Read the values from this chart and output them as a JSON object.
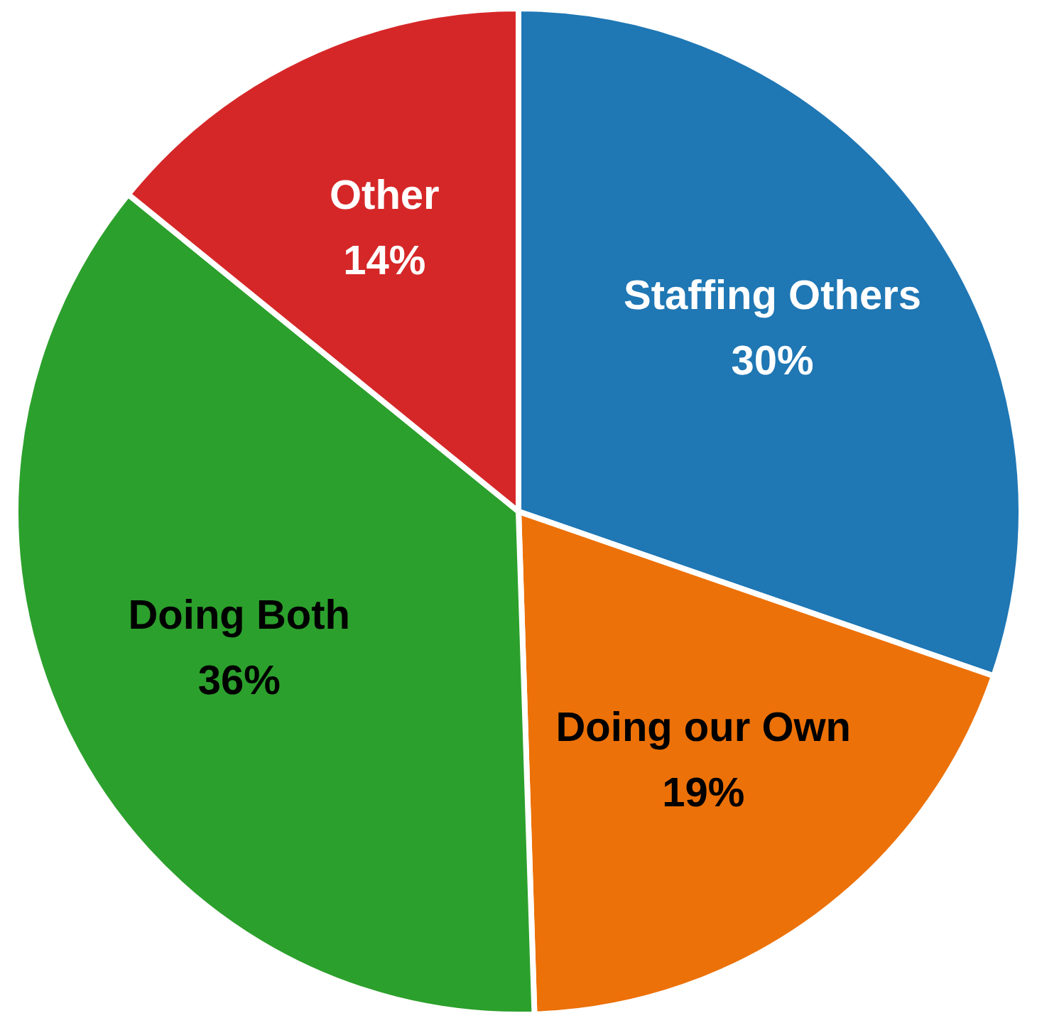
{
  "chart_data": {
    "type": "pie",
    "categories": [
      "Staffing Others",
      "Doing our Own",
      "Doing Both",
      "Other"
    ],
    "values": [
      30,
      19,
      36,
      14
    ],
    "colors": [
      "#1f77b4",
      "#ec7108",
      "#2ca02c",
      "#d62728"
    ],
    "value_labels": [
      "30%",
      "19%",
      "36%",
      "14%"
    ],
    "legend": false
  }
}
